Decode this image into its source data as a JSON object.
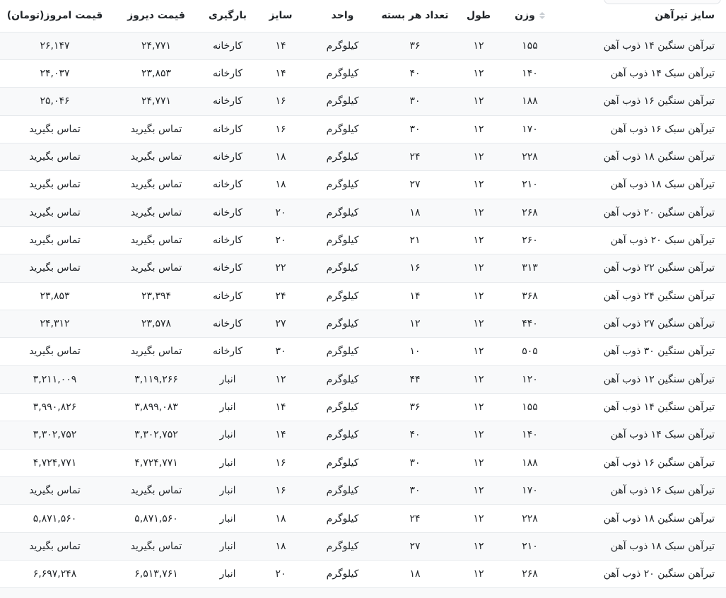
{
  "colors": {
    "stripe_row_bg": "#f8f9fa",
    "row_border": "#e7eaed",
    "text": "#212529",
    "sort_icon": "#c9ced3"
  },
  "table": {
    "columns": [
      {
        "key": "name",
        "label": "سایز تیرآهن",
        "sortable": false
      },
      {
        "key": "weight",
        "label": "وزن",
        "sortable": true
      },
      {
        "key": "length",
        "label": "طول",
        "sortable": false
      },
      {
        "key": "count",
        "label": "تعداد هر بسته",
        "sortable": false
      },
      {
        "key": "unit",
        "label": "واحد",
        "sortable": false
      },
      {
        "key": "size",
        "label": "سایز",
        "sortable": false
      },
      {
        "key": "loading",
        "label": "بارگیری",
        "sortable": false
      },
      {
        "key": "yesterday",
        "label": "قیمت دیروز",
        "sortable": false
      },
      {
        "key": "today",
        "label": "قیمت امروز(تومان)",
        "sortable": false
      }
    ],
    "rows": [
      [
        "تیرآهن سنگین ۱۴ ذوب آهن",
        "۱۵۵",
        "۱۲",
        "۳۶",
        "کیلوگرم",
        "۱۴",
        "کارخانه",
        "۲۴,۷۷۱",
        "۲۶,۱۴۷"
      ],
      [
        "تیرآهن سبک ۱۴ ذوب آهن",
        "۱۴۰",
        "۱۲",
        "۴۰",
        "کیلوگرم",
        "۱۴",
        "کارخانه",
        "۲۳,۸۵۳",
        "۲۴,۰۳۷"
      ],
      [
        "تیرآهن سنگین ۱۶ ذوب آهن",
        "۱۸۸",
        "۱۲",
        "۳۰",
        "کیلوگرم",
        "۱۶",
        "کارخانه",
        "۲۴,۷۷۱",
        "۲۵,۰۴۶"
      ],
      [
        "تیرآهن سبک ۱۶ ذوب آهن",
        "۱۷۰",
        "۱۲",
        "۳۰",
        "کیلوگرم",
        "۱۶",
        "کارخانه",
        "تماس بگیرید",
        "تماس بگیرید"
      ],
      [
        "تیرآهن سنگین ۱۸ ذوب آهن",
        "۲۲۸",
        "۱۲",
        "۲۴",
        "کیلوگرم",
        "۱۸",
        "کارخانه",
        "تماس بگیرید",
        "تماس بگیرید"
      ],
      [
        "تیرآهن سبک ۱۸ ذوب آهن",
        "۲۱۰",
        "۱۲",
        "۲۷",
        "کیلوگرم",
        "۱۸",
        "کارخانه",
        "تماس بگیرید",
        "تماس بگیرید"
      ],
      [
        "تیرآهن سنگین ۲۰ ذوب آهن",
        "۲۶۸",
        "۱۲",
        "۱۸",
        "کیلوگرم",
        "۲۰",
        "کارخانه",
        "تماس بگیرید",
        "تماس بگیرید"
      ],
      [
        "تیرآهن سبک ۲۰ ذوب آهن",
        "۲۶۰",
        "۱۲",
        "۲۱",
        "کیلوگرم",
        "۲۰",
        "کارخانه",
        "تماس بگیرید",
        "تماس بگیرید"
      ],
      [
        "تیرآهن سنگین ۲۲ ذوب آهن",
        "۳۱۳",
        "۱۲",
        "۱۶",
        "کیلوگرم",
        "۲۲",
        "کارخانه",
        "تماس بگیرید",
        "تماس بگیرید"
      ],
      [
        "تیرآهن سنگین ۲۴ ذوب آهن",
        "۳۶۸",
        "۱۲",
        "۱۴",
        "کیلوگرم",
        "۲۴",
        "کارخانه",
        "۲۳,۳۹۴",
        "۲۳,۸۵۳"
      ],
      [
        "تیرآهن سنگین ۲۷ ذوب آهن",
        "۴۴۰",
        "۱۲",
        "۱۲",
        "کیلوگرم",
        "۲۷",
        "کارخانه",
        "۲۳,۵۷۸",
        "۲۴,۳۱۲"
      ],
      [
        "تیرآهن سنگین ۳۰ ذوب آهن",
        "۵۰۵",
        "۱۲",
        "۱۰",
        "کیلوگرم",
        "۳۰",
        "کارخانه",
        "تماس بگیرید",
        "تماس بگیرید"
      ],
      [
        "تیرآهن سنگین ۱۲ ذوب آهن",
        "۱۲۰",
        "۱۲",
        "۴۴",
        "کیلوگرم",
        "۱۲",
        "انبار",
        "۳,۱۱۹,۲۶۶",
        "۳,۲۱۱,۰۰۹"
      ],
      [
        "تیرآهن سنگین ۱۴ ذوب آهن",
        "۱۵۵",
        "۱۲",
        "۳۶",
        "کیلوگرم",
        "۱۴",
        "انبار",
        "۳,۸۹۹,۰۸۳",
        "۳,۹۹۰,۸۲۶"
      ],
      [
        "تیرآهن سبک ۱۴ ذوب آهن",
        "۱۴۰",
        "۱۲",
        "۴۰",
        "کیلوگرم",
        "۱۴",
        "انبار",
        "۳,۳۰۲,۷۵۲",
        "۳,۳۰۲,۷۵۲"
      ],
      [
        "تیرآهن سنگین ۱۶ ذوب آهن",
        "۱۸۸",
        "۱۲",
        "۳۰",
        "کیلوگرم",
        "۱۶",
        "انبار",
        "۴,۷۲۴,۷۷۱",
        "۴,۷۲۴,۷۷۱"
      ],
      [
        "تیرآهن سبک ۱۶ ذوب آهن",
        "۱۷۰",
        "۱۲",
        "۳۰",
        "کیلوگرم",
        "۱۶",
        "انبار",
        "تماس بگیرید",
        "تماس بگیرید"
      ],
      [
        "تیرآهن سنگین ۱۸ ذوب آهن",
        "۲۲۸",
        "۱۲",
        "۲۴",
        "کیلوگرم",
        "۱۸",
        "انبار",
        "۵,۸۷۱,۵۶۰",
        "۵,۸۷۱,۵۶۰"
      ],
      [
        "تیرآهن سبک ۱۸ ذوب آهن",
        "۲۱۰",
        "۱۲",
        "۲۷",
        "کیلوگرم",
        "۱۸",
        "انبار",
        "تماس بگیرید",
        "تماس بگیرید"
      ],
      [
        "تیرآهن سنگین ۲۰ ذوب آهن",
        "۲۶۸",
        "۱۲",
        "۱۸",
        "کیلوگرم",
        "۲۰",
        "انبار",
        "۶,۵۱۳,۷۶۱",
        "۶,۶۹۷,۲۴۸"
      ]
    ]
  }
}
